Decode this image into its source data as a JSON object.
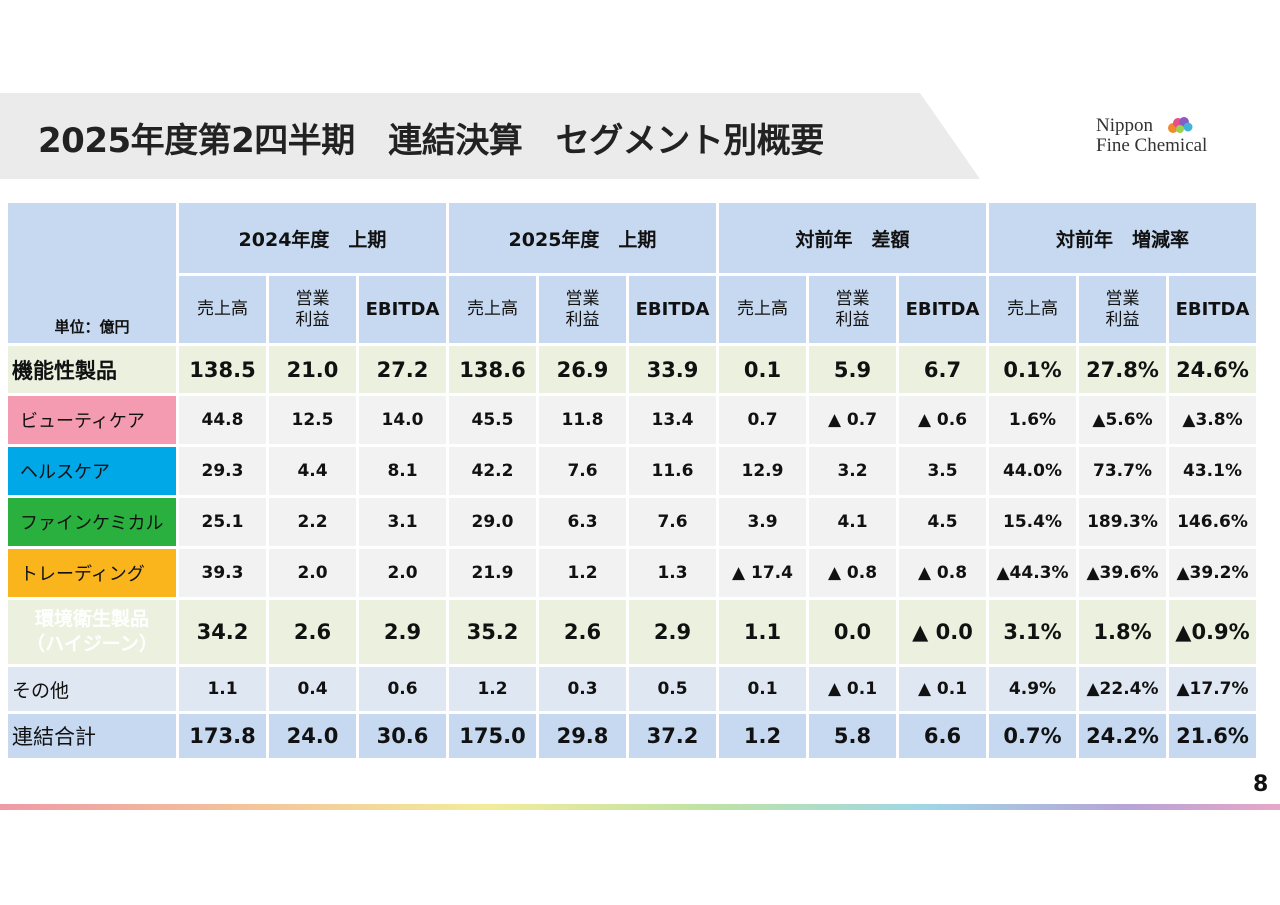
{
  "title": "2025年度第2四半期　連結決算　セグメント別概要",
  "logo": {
    "line1": "Nippon",
    "line2": "Fine Chemical"
  },
  "unit_label": "単位：億円",
  "groups": [
    "2024年度　上期",
    "2025年度　上期",
    "対前年　差額",
    "対前年　増減率"
  ],
  "subheaders": {
    "sales": "売上高",
    "op1": "営業",
    "op2": "利益",
    "ebitda": "EBITDA"
  },
  "rows": [
    {
      "label": "機能性製品",
      "values": [
        "138.5",
        "21.0",
        "27.2",
        "138.6",
        "26.9",
        "33.9",
        "0.1",
        "5.9",
        "6.7",
        "0.1%",
        "27.8%",
        "24.6%"
      ]
    },
    {
      "label": "ビューティケア",
      "values": [
        "44.8",
        "12.5",
        "14.0",
        "45.5",
        "11.8",
        "13.4",
        "0.7",
        "▲ 0.7",
        "▲ 0.6",
        "1.6%",
        "▲5.6%",
        "▲3.8%"
      ]
    },
    {
      "label": "ヘルスケア",
      "values": [
        "29.3",
        "4.4",
        "8.1",
        "42.2",
        "7.6",
        "11.6",
        "12.9",
        "3.2",
        "3.5",
        "44.0%",
        "73.7%",
        "43.1%"
      ]
    },
    {
      "label": "ファインケミカル",
      "values": [
        "25.1",
        "2.2",
        "3.1",
        "29.0",
        "6.3",
        "7.6",
        "3.9",
        "4.1",
        "4.5",
        "15.4%",
        "189.3%",
        "146.6%"
      ]
    },
    {
      "label": "トレーディング",
      "values": [
        "39.3",
        "2.0",
        "2.0",
        "21.9",
        "1.2",
        "1.3",
        "▲ 17.4",
        "▲ 0.8",
        "▲ 0.8",
        "▲44.3%",
        "▲39.6%",
        "▲39.2%"
      ]
    },
    {
      "label1": "環境衛生製品",
      "label2": "（ハイジーン）",
      "values": [
        "34.2",
        "2.6",
        "2.9",
        "35.2",
        "2.6",
        "2.9",
        "1.1",
        "0.0",
        "▲ 0.0",
        "3.1%",
        "1.8%",
        "▲0.9%"
      ]
    },
    {
      "label": "その他",
      "values": [
        "1.1",
        "0.4",
        "0.6",
        "1.2",
        "0.3",
        "0.5",
        "0.1",
        "▲ 0.1",
        "▲ 0.1",
        "4.9%",
        "▲22.4%",
        "▲17.7%"
      ]
    },
    {
      "label": "連結合計",
      "values": [
        "173.8",
        "24.0",
        "30.6",
        "175.0",
        "29.8",
        "37.2",
        "1.2",
        "5.8",
        "6.6",
        "0.7%",
        "24.2%",
        "21.6%"
      ]
    }
  ],
  "page_number": "8",
  "colors": {
    "header": "#c6d9f1",
    "beauty": "#f49ab1",
    "health": "#00a8e8",
    "fine": "#2ab03e",
    "trading": "#fbb51c",
    "hygiene": "#0f2867"
  }
}
